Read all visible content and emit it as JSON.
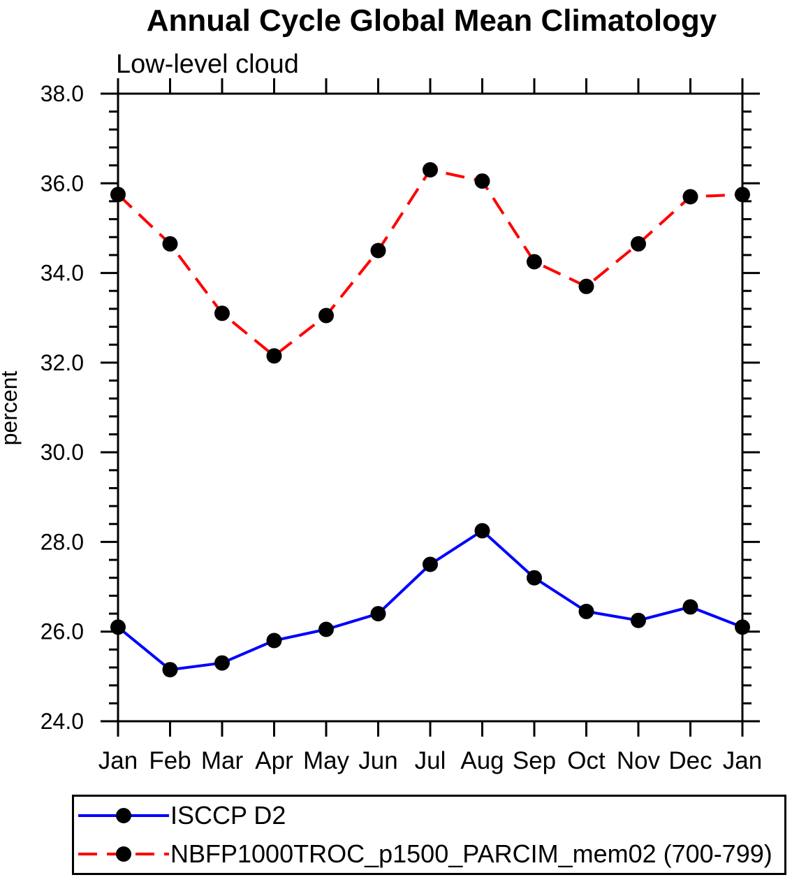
{
  "page": {
    "background": "#ffffff"
  },
  "chart_data": {
    "type": "line",
    "title": "Annual Cycle Global Mean Climatology",
    "subtitle": "Low-level cloud",
    "ylabel": "percent",
    "categories": [
      "Jan",
      "Feb",
      "Mar",
      "Apr",
      "May",
      "Jun",
      "Jul",
      "Aug",
      "Sep",
      "Oct",
      "Nov",
      "Dec",
      "Jan"
    ],
    "ylim": [
      24.0,
      38.0
    ],
    "ytick_step": 2.0,
    "ytick_minor_step": 0.4,
    "ytick_labels": [
      "24.0",
      "26.0",
      "28.0",
      "30.0",
      "32.0",
      "34.0",
      "36.0",
      "38.0"
    ],
    "grid": false,
    "legend_position": "bottom",
    "axis_color": "#000000",
    "marker": "filled-circle",
    "marker_color": "#000000",
    "series": [
      {
        "name": "ISCCP D2",
        "color": "#0000ff",
        "line_style": "solid",
        "values": [
          26.1,
          25.15,
          25.3,
          25.8,
          26.05,
          26.4,
          27.5,
          28.25,
          27.2,
          26.45,
          26.25,
          26.55,
          26.1
        ]
      },
      {
        "name": "NBFP1000TROC_p1500_PARCIM_mem02 (700-799)",
        "color": "#ff0000",
        "line_style": "dashed",
        "values": [
          35.75,
          34.65,
          33.1,
          32.15,
          33.05,
          34.5,
          36.3,
          36.05,
          34.25,
          33.7,
          34.65,
          35.7,
          35.75
        ]
      }
    ]
  }
}
